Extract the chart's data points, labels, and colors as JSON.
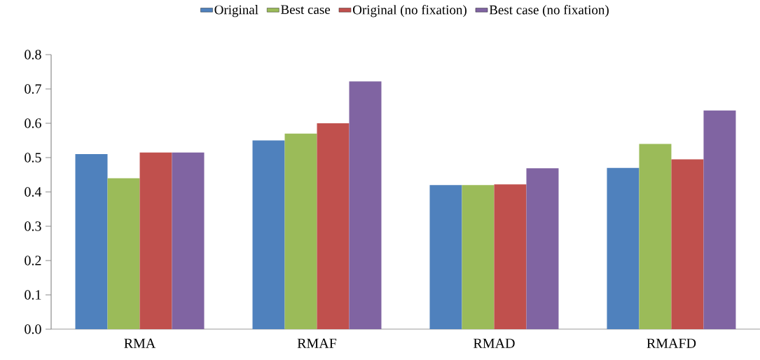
{
  "chart_data": {
    "type": "bar",
    "categories": [
      "RMA",
      "RMAF",
      "RMAD",
      "RMAFD"
    ],
    "series": [
      {
        "name": "Original",
        "color": "#4f81bd",
        "values": [
          0.51,
          0.55,
          0.42,
          0.47
        ]
      },
      {
        "name": "Best case",
        "color": "#9bbb59",
        "values": [
          0.44,
          0.57,
          0.42,
          0.54
        ]
      },
      {
        "name": "Original (no fixation)",
        "color": "#c0504d",
        "values": [
          0.515,
          0.6,
          0.422,
          0.495
        ]
      },
      {
        "name": "Best case (no fixation)",
        "color": "#8064a2",
        "values": [
          0.515,
          0.722,
          0.469,
          0.637
        ]
      }
    ],
    "ylim": [
      0,
      0.8
    ],
    "yticks": [
      {
        "value": 0,
        "label": "0.0"
      },
      0.1,
      0.2,
      0.3,
      0.4,
      0.5,
      0.6,
      0.7,
      0.8
    ],
    "legend": "top"
  }
}
